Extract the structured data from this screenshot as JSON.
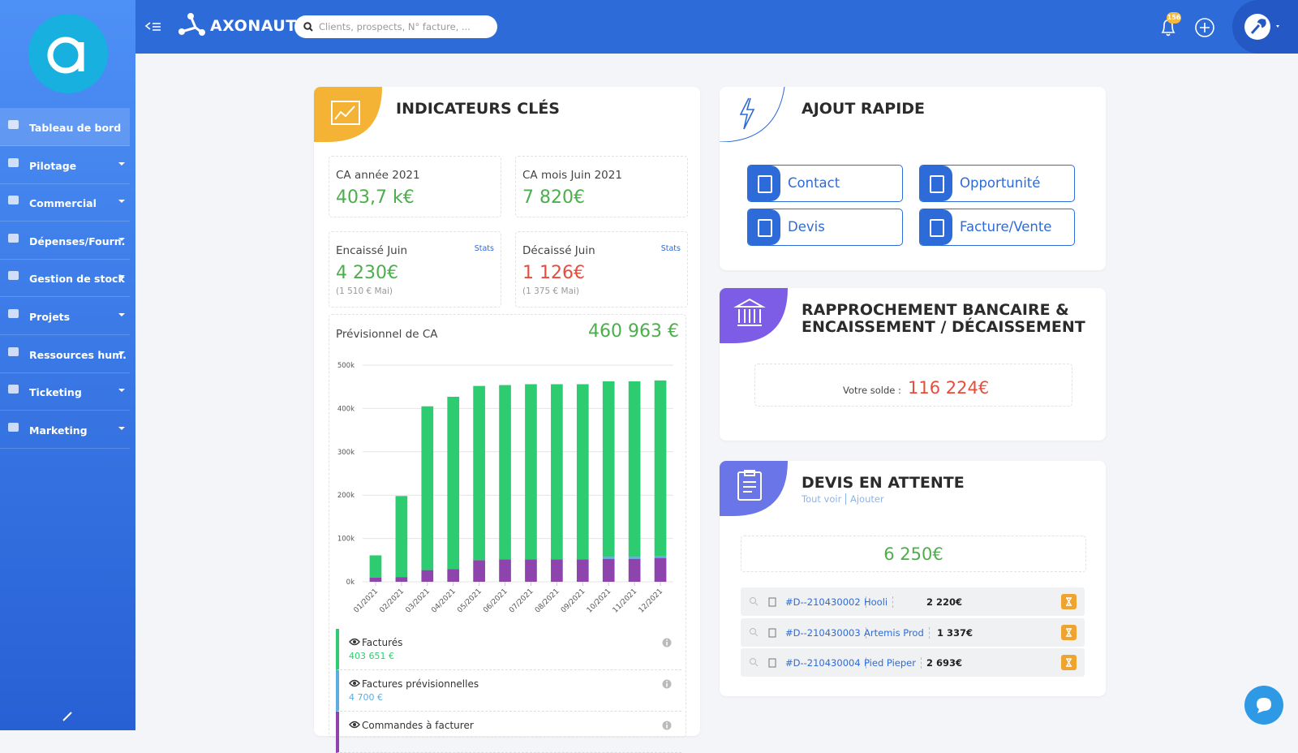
{
  "sidebar": {
    "menu": [
      "Tableau de bord",
      "Pilotage",
      "Commercial",
      "Dépenses/Fourn.",
      "Gestion de stock",
      "Projets",
      "Ressources hum.",
      "Ticketing",
      "Marketing"
    ]
  },
  "header": {
    "brand": "AXONAUT",
    "search_placeholder": "Clients, prospects, N° facture, ...",
    "notification_count": "156"
  },
  "indicators": {
    "title": "INDICATEURS CLÉS",
    "kpis": [
      {
        "label": "CA année 2021",
        "value": "403,7 k€"
      },
      {
        "label": "CA mois Juin 2021",
        "value": "7 820€"
      },
      {
        "label": "Encaissé Juin",
        "value": "4 230€",
        "previous": "(1 510 € Mai)",
        "link": "Stats"
      },
      {
        "label": "Décaissé Juin",
        "value": "1 126€",
        "previous": "(1 375 € Mai)",
        "link": "Stats"
      }
    ],
    "forecast_label": "Prévisionnel de CA",
    "forecast_value": "460 963 €"
  },
  "chart_data": {
    "type": "bar",
    "stacked": true,
    "grid": true,
    "categories": [
      "01/2021",
      "02/2021",
      "03/2021",
      "04/2021",
      "05/2021",
      "06/2021",
      "07/2021",
      "08/2021",
      "09/2021",
      "10/2021",
      "11/2021",
      "12/2021"
    ],
    "series": [
      {
        "name": "Commandes à facturer",
        "color": "#8e44ad",
        "values": [
          10000,
          11000,
          27000,
          29000,
          50000,
          52000,
          52000,
          52000,
          52000,
          53000,
          53000,
          55000
        ]
      },
      {
        "name": "Factures prévisionnelles",
        "color": "#5dade2",
        "total": "4 700 €",
        "values": [
          0,
          0,
          0,
          0,
          0,
          0,
          0,
          0,
          0,
          4700,
          4700,
          4700
        ]
      },
      {
        "name": "Facturés",
        "color": "#2ecc71",
        "total": "403 651 €",
        "values": [
          51000,
          187000,
          378000,
          398000,
          402000,
          402000,
          404000,
          404000,
          404000,
          405000,
          405000,
          405000
        ]
      }
    ],
    "ylim": [
      0,
      500000
    ],
    "yticks": [
      {
        "value": 0,
        "label": "0k"
      },
      {
        "value": 100000,
        "label": "100k"
      },
      {
        "value": 200000,
        "label": "200k"
      },
      {
        "value": 300000,
        "label": "300k"
      },
      {
        "value": 400000,
        "label": "400k"
      },
      {
        "value": 500000,
        "label": "500k"
      }
    ]
  },
  "quick_add": {
    "title": "AJOUT RAPIDE",
    "buttons": [
      "Contact",
      "Opportunité",
      "Devis",
      "Facture/Vente"
    ]
  },
  "bank": {
    "title_lines": [
      "RAPPROCHEMENT BANCAIRE &",
      "ENCAISSEMENT / DÉCAISSEMENT"
    ],
    "balance_label": "Votre solde :",
    "balance": "116 224€"
  },
  "quotes": {
    "title": "DEVIS EN ATTENTE",
    "links": [
      "Tout voir",
      "Ajouter"
    ],
    "total": "6 250€",
    "rows": [
      {
        "number": "#D--210430002",
        "client": "Hooli",
        "amount": "2 220€"
      },
      {
        "number": "#D--210430003",
        "client": "Artemis Prod",
        "amount": "1 337€"
      },
      {
        "number": "#D--210430004",
        "client": "Pied Pieper",
        "amount": "2 693€"
      }
    ]
  }
}
